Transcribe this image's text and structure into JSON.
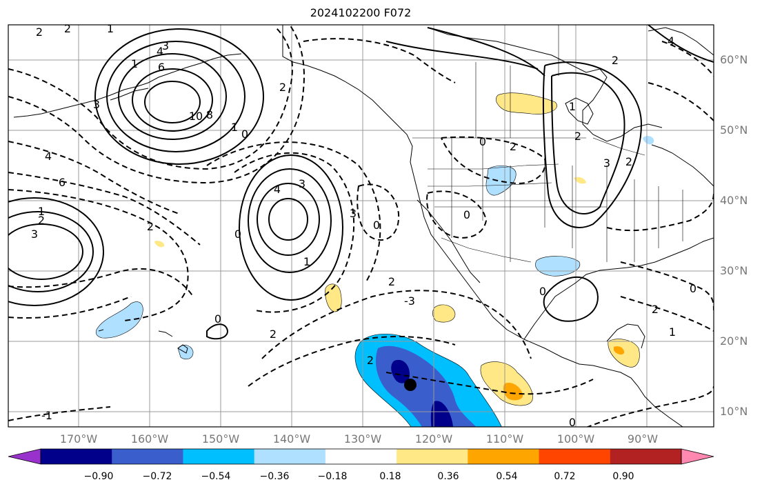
{
  "title": "2024102200 F072",
  "lat_labels": [
    "60°N",
    "50°N",
    "40°N",
    "30°N",
    "20°N",
    "10°N"
  ],
  "lon_labels": [
    "170°W",
    "160°W",
    "150°W",
    "140°W",
    "130°W",
    "120°W",
    "110°W",
    "100°W",
    "90°W"
  ],
  "colorbar": {
    "tick_labels": [
      "−0.90",
      "−0.72",
      "−0.54",
      "−0.36",
      "−0.18",
      "0.18",
      "0.36",
      "0.54",
      "0.72",
      "0.90"
    ],
    "colors": [
      "#9932cc",
      "#00008b",
      "#3a5fcd",
      "#00bfff",
      "#b0e0ff",
      "#ffffff",
      "#ffe885",
      "#ffa500",
      "#ff4500",
      "#b22222",
      "#ff88b0"
    ]
  },
  "contour_labels": [
    "2",
    "2",
    "1",
    "3",
    "1",
    "3",
    "4",
    "6",
    "10",
    "8",
    "2",
    "0",
    "1",
    "4",
    "3",
    "0",
    "2",
    "3",
    "2",
    "4",
    "6",
    "1",
    "0",
    "2",
    "3",
    "0",
    "2",
    "-3",
    "0",
    "2",
    "1",
    "2",
    "3",
    "2",
    "0",
    "0",
    "2",
    "1",
    "0",
    "2",
    "1",
    "-1",
    "0",
    "2",
    "4"
  ],
  "contour_labels_extra": [],
  "chart_data": {
    "type": "map",
    "title": "2024102200 F072",
    "lat_range": [
      "8°N",
      "65°N"
    ],
    "lon_range": [
      "180°W",
      "80°W"
    ],
    "grid": true,
    "colorbar_levels": [
      -0.9,
      -0.72,
      -0.54,
      -0.36,
      -0.18,
      0.18,
      0.36,
      0.54,
      0.72,
      0.9
    ],
    "marker": {
      "lon": -123,
      "lat": 14
    }
  }
}
